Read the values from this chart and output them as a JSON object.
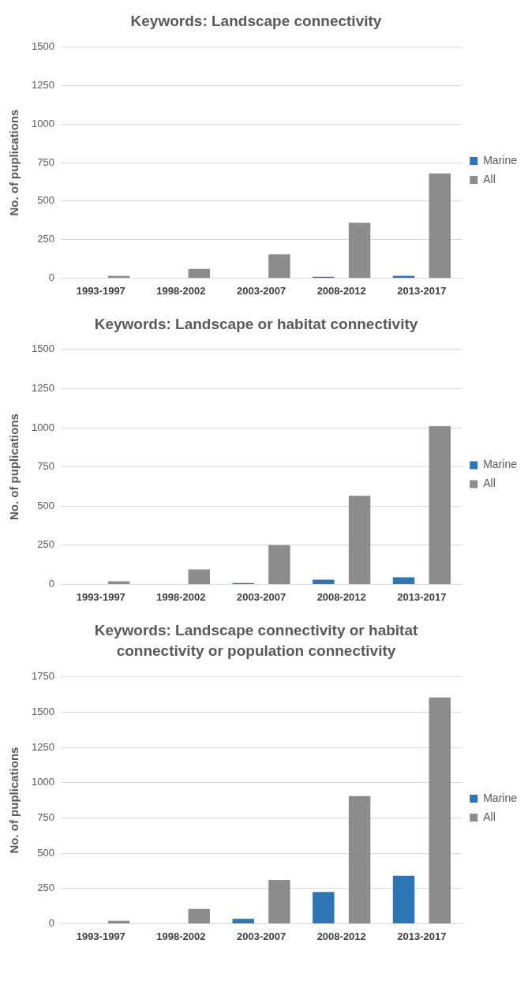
{
  "chart_data": [
    {
      "type": "bar",
      "title": "Keywords: Landscape connectivity",
      "ylabel": "No. of puplications",
      "categories": [
        "1993-1997",
        "1998-2002",
        "2003-2007",
        "2008-2012",
        "2013-2017"
      ],
      "series": [
        {
          "name": "Marine",
          "color": "#2e75b6",
          "values": [
            0,
            0,
            0,
            8,
            15
          ]
        },
        {
          "name": "All",
          "color": "#8c8c8c",
          "values": [
            15,
            60,
            155,
            360,
            680
          ]
        }
      ],
      "ylim": [
        0,
        1500
      ],
      "yticks": [
        0,
        250,
        500,
        750,
        1000,
        1250,
        1500
      ],
      "grid": "y",
      "legend": "right"
    },
    {
      "type": "bar",
      "title": "Keywords: Landscape or habitat connectivity",
      "ylabel": "No. of puplications",
      "categories": [
        "1993-1997",
        "1998-2002",
        "2003-2007",
        "2008-2012",
        "2013-2017"
      ],
      "series": [
        {
          "name": "Marine",
          "color": "#2e75b6",
          "values": [
            0,
            0,
            8,
            30,
            45
          ]
        },
        {
          "name": "All",
          "color": "#8c8c8c",
          "values": [
            20,
            95,
            250,
            565,
            1010
          ]
        }
      ],
      "ylim": [
        0,
        1500
      ],
      "yticks": [
        0,
        250,
        500,
        750,
        1000,
        1250,
        1500
      ],
      "grid": "y",
      "legend": "right"
    },
    {
      "type": "bar",
      "title": "Keywords: Landscape connectivity or habitat connectivity or population connectivity",
      "ylabel": "No. of puplications",
      "categories": [
        "1993-1997",
        "1998-2002",
        "2003-2007",
        "2008-2012",
        "2013-2017"
      ],
      "series": [
        {
          "name": "Marine",
          "color": "#2e75b6",
          "values": [
            0,
            0,
            35,
            225,
            340
          ]
        },
        {
          "name": "All",
          "color": "#8c8c8c",
          "values": [
            20,
            105,
            310,
            905,
            1605
          ]
        }
      ],
      "ylim": [
        0,
        1750
      ],
      "yticks": [
        0,
        250,
        500,
        750,
        1000,
        1250,
        1500,
        1750
      ],
      "grid": "y",
      "legend": "right"
    }
  ]
}
